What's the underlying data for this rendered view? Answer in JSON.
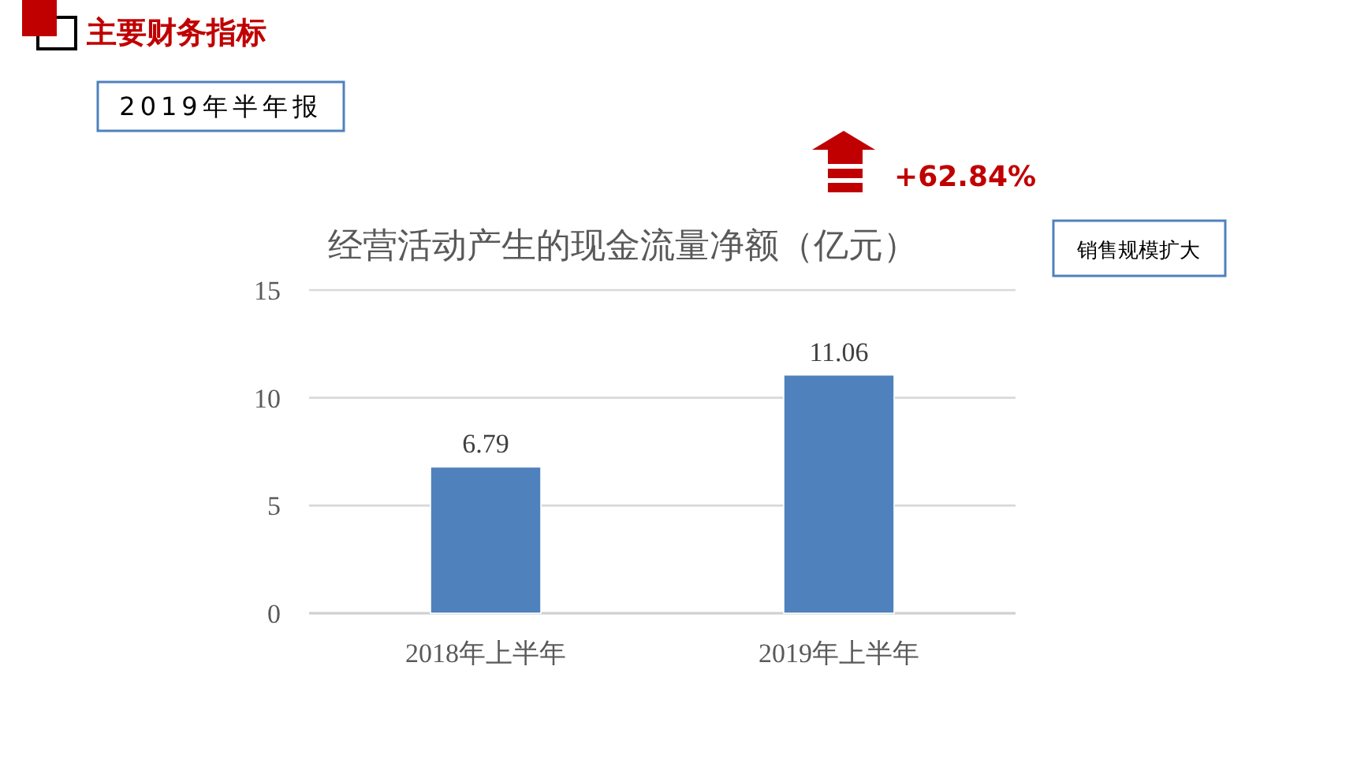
{
  "chart_data": {
    "type": "bar",
    "title": "经营活动产生的现金流量净额（亿元）",
    "subtitle": "2019年半年报",
    "annotations": [
      "主要财务指标",
      "+62.84%",
      "销售规模扩大"
    ],
    "categories": [
      "2018年上半年",
      "2019年上半年"
    ],
    "values": [
      6.79,
      11.06
    ],
    "color": "#4f81bd",
    "ylim": [
      0,
      15
    ],
    "yticks": [
      0,
      5,
      10,
      15
    ],
    "grid": "y",
    "data_labels": true
  }
}
